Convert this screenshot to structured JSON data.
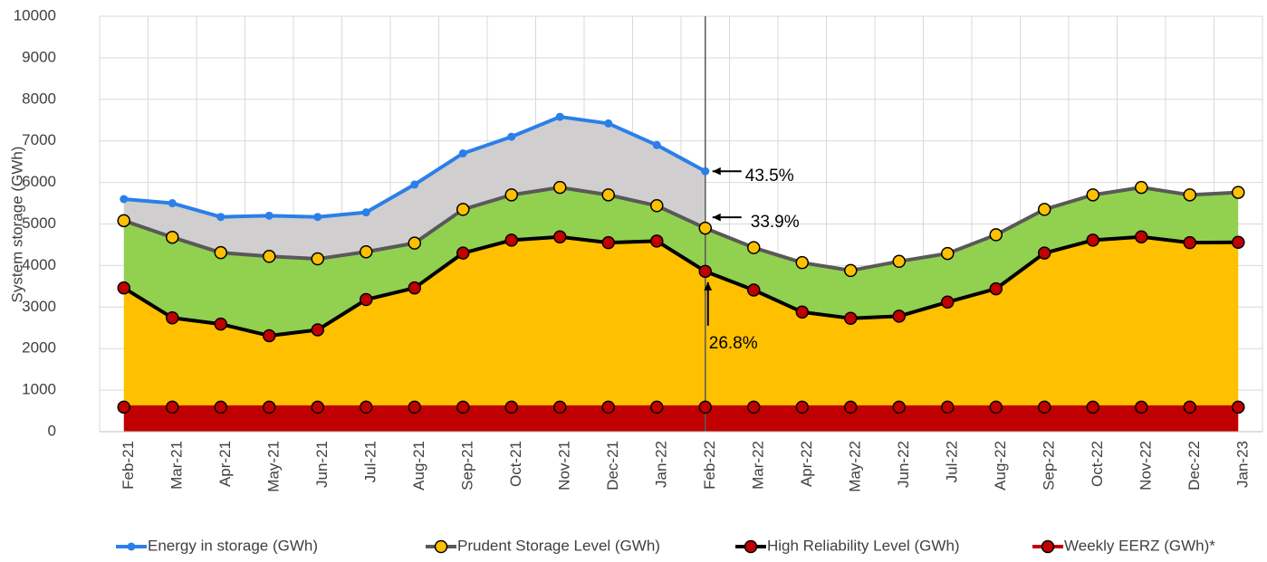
{
  "chart_data": {
    "type": "area-line",
    "y_label": "System storage (GWh)",
    "categories": [
      "Feb-21",
      "Mar-21",
      "Apr-21",
      "May-21",
      "Jun-21",
      "Jul-21",
      "Aug-21",
      "Sep-21",
      "Oct-21",
      "Nov-21",
      "Dec-21",
      "Jan-22",
      "Feb-22",
      "Mar-22",
      "Apr-22",
      "May-22",
      "Jun-22",
      "Jul-22",
      "Aug-22",
      "Sep-22",
      "Oct-22",
      "Nov-22",
      "Dec-22",
      "Jan-23"
    ],
    "series": [
      {
        "name": "Energy in storage (GWh)",
        "color": "#2b7fe8",
        "marker": "#2b7fe8",
        "fill": "#d0cece",
        "values": [
          5600,
          5500,
          5170,
          5200,
          5170,
          5280,
          5950,
          6700,
          7100,
          7580,
          7420,
          6900,
          6270,
          null,
          null,
          null,
          null,
          null,
          null,
          null,
          null,
          null,
          null,
          null
        ]
      },
      {
        "name": "Prudent Storage Level (GWh)",
        "color": "#595959",
        "marker": "#ffc000",
        "fill": "#92d050",
        "values": [
          5080,
          4680,
          4310,
          4220,
          4160,
          4330,
          4540,
          5350,
          5700,
          5880,
          5700,
          5440,
          4900,
          4430,
          4070,
          3880,
          4100,
          4290,
          4740,
          5350,
          5700,
          5880,
          5700,
          5760
        ]
      },
      {
        "name": "High Reliability Level (GWh)",
        "color": "#000000",
        "marker": "#c00000",
        "fill": "#ffc000",
        "values": [
          3460,
          2740,
          2590,
          2310,
          2450,
          3180,
          3460,
          4300,
          4610,
          4690,
          4550,
          4590,
          3860,
          3410,
          2880,
          2730,
          2780,
          3120,
          3440,
          4300,
          4610,
          4690,
          4550,
          4560
        ]
      },
      {
        "name": "Weekly EERZ (GWh)*",
        "color": "#c00000",
        "marker": "#c00000",
        "fill": "#c00000",
        "values": [
          590,
          590,
          590,
          590,
          590,
          590,
          590,
          590,
          590,
          590,
          590,
          590,
          590,
          590,
          590,
          590,
          590,
          590,
          590,
          590,
          590,
          590,
          590,
          590
        ]
      }
    ],
    "annotations": [
      "43.5%",
      "33.9%",
      "26.8%"
    ],
    "ylim": [
      0,
      10000
    ],
    "yticks": [
      0,
      1000,
      2000,
      3000,
      4000,
      5000,
      6000,
      7000,
      8000,
      9000,
      10000
    ],
    "grid": true
  }
}
